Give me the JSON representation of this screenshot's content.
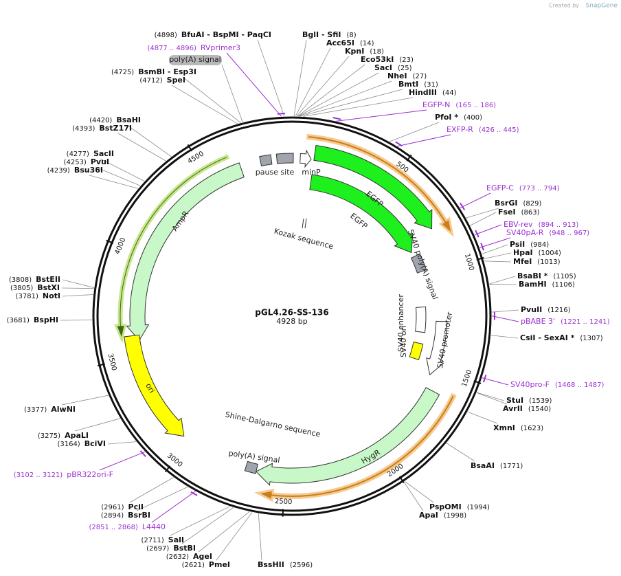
{
  "watermark": {
    "created_by": "Created by",
    "brand": "SnapGene"
  },
  "plasmid": {
    "name": "pGL4.26-SS-136",
    "size": "4928 bp"
  },
  "sites": [
    {
      "name": "BfuAI   - BspMI   - PaqCI",
      "position": "(4898)"
    },
    {
      "name": "BglI   - SfiI",
      "position": "(8)"
    },
    {
      "name": "Acc65I",
      "position": "(14)"
    },
    {
      "name": "KpnI",
      "position": "(18)"
    },
    {
      "name": "Eco53kI",
      "position": "(23)"
    },
    {
      "name": "SacI",
      "position": "(25)"
    },
    {
      "name": "NheI",
      "position": "(27)"
    },
    {
      "name": "BmtI",
      "position": "(31)"
    },
    {
      "name": "HindIII",
      "position": "(44)"
    },
    {
      "name": "PfoI *",
      "position": "(400)"
    },
    {
      "name": "BsrGI",
      "position": "(829)"
    },
    {
      "name": "FseI",
      "position": "(863)"
    },
    {
      "name": "PsiI",
      "position": "(984)"
    },
    {
      "name": "HpaI",
      "position": "(1004)"
    },
    {
      "name": "MfeI",
      "position": "(1013)"
    },
    {
      "name": "BsaBI *",
      "position": "(1105)"
    },
    {
      "name": "BamHI",
      "position": "(1106)"
    },
    {
      "name": "PvuII",
      "position": "(1216)"
    },
    {
      "name": "CsiI   - SexAI *",
      "position": "(1307)"
    },
    {
      "name": "StuI",
      "position": "(1539)"
    },
    {
      "name": "AvrII",
      "position": "(1540)"
    },
    {
      "name": "XmnI",
      "position": "(1623)"
    },
    {
      "name": "BsaAI",
      "position": "(1771)"
    },
    {
      "name": "PspOMI",
      "position": "(1994)"
    },
    {
      "name": "ApaI",
      "position": "(1998)"
    },
    {
      "name": "BssHII",
      "position": "(2596)"
    },
    {
      "name": "PmeI",
      "position": "(2621)"
    },
    {
      "name": "AgeI",
      "position": "(2632)"
    },
    {
      "name": "BstBI",
      "position": "(2697)"
    },
    {
      "name": "SalI",
      "position": "(2711)"
    },
    {
      "name": "BsrBI",
      "position": "(2894)"
    },
    {
      "name": "PciI",
      "position": "(2961)"
    },
    {
      "name": "BciVI",
      "position": "(3164)"
    },
    {
      "name": "ApaLI",
      "position": "(3275)"
    },
    {
      "name": "AlwNI",
      "position": "(3377)"
    },
    {
      "name": "BspHI",
      "position": "(3681)"
    },
    {
      "name": "NotI",
      "position": "(3781)"
    },
    {
      "name": "BstXI",
      "position": "(3805)"
    },
    {
      "name": "BstEII",
      "position": "(3808)"
    },
    {
      "name": "Bsu36I",
      "position": "(4239)"
    },
    {
      "name": "PvuI",
      "position": "(4253)"
    },
    {
      "name": "SacII",
      "position": "(4277)"
    },
    {
      "name": "BstZ17I",
      "position": "(4393)"
    },
    {
      "name": "BsaHI",
      "position": "(4420)"
    },
    {
      "name": "SpeI",
      "position": "(4712)"
    },
    {
      "name": "BsmBI   - Esp3I",
      "position": "(4725)"
    }
  ],
  "primers": [
    {
      "name": "RVprimer3",
      "range": "(4877 .. 4896)"
    },
    {
      "name": "EGFP-N",
      "range": "(165 .. 186)"
    },
    {
      "name": "EXFP-R",
      "range": "(426 .. 445)"
    },
    {
      "name": "EGFP-C",
      "range": "(773 .. 794)"
    },
    {
      "name": "EBV-rev",
      "range": "(894 .. 913)"
    },
    {
      "name": "SV40pA-R",
      "range": "(948 .. 967)"
    },
    {
      "name": "pBABE 3'",
      "range": "(1221 .. 1241)"
    },
    {
      "name": "SV40pro-F",
      "range": "(1468 .. 1487)"
    },
    {
      "name": "pBR322ori-F",
      "range": "(3102 .. 3121)"
    },
    {
      "name": "L4440",
      "range": "(2851 .. 2868)"
    }
  ],
  "features": [
    "poly(A) signal",
    "pause site",
    "minP",
    "EGFP",
    "EGFP",
    "Kozak sequence",
    "SV40 poly(A) signal",
    "AmpR",
    "SV40 enhancer",
    "SV40 ori",
    "SV40 promoter",
    "ori",
    "Shine-Dalgarno sequence",
    "poly(A) signal",
    "HygR"
  ],
  "ring_ticks": [
    "500",
    "1000",
    "1500",
    "2000",
    "2500",
    "3000",
    "3500",
    "4000",
    "4500"
  ]
}
